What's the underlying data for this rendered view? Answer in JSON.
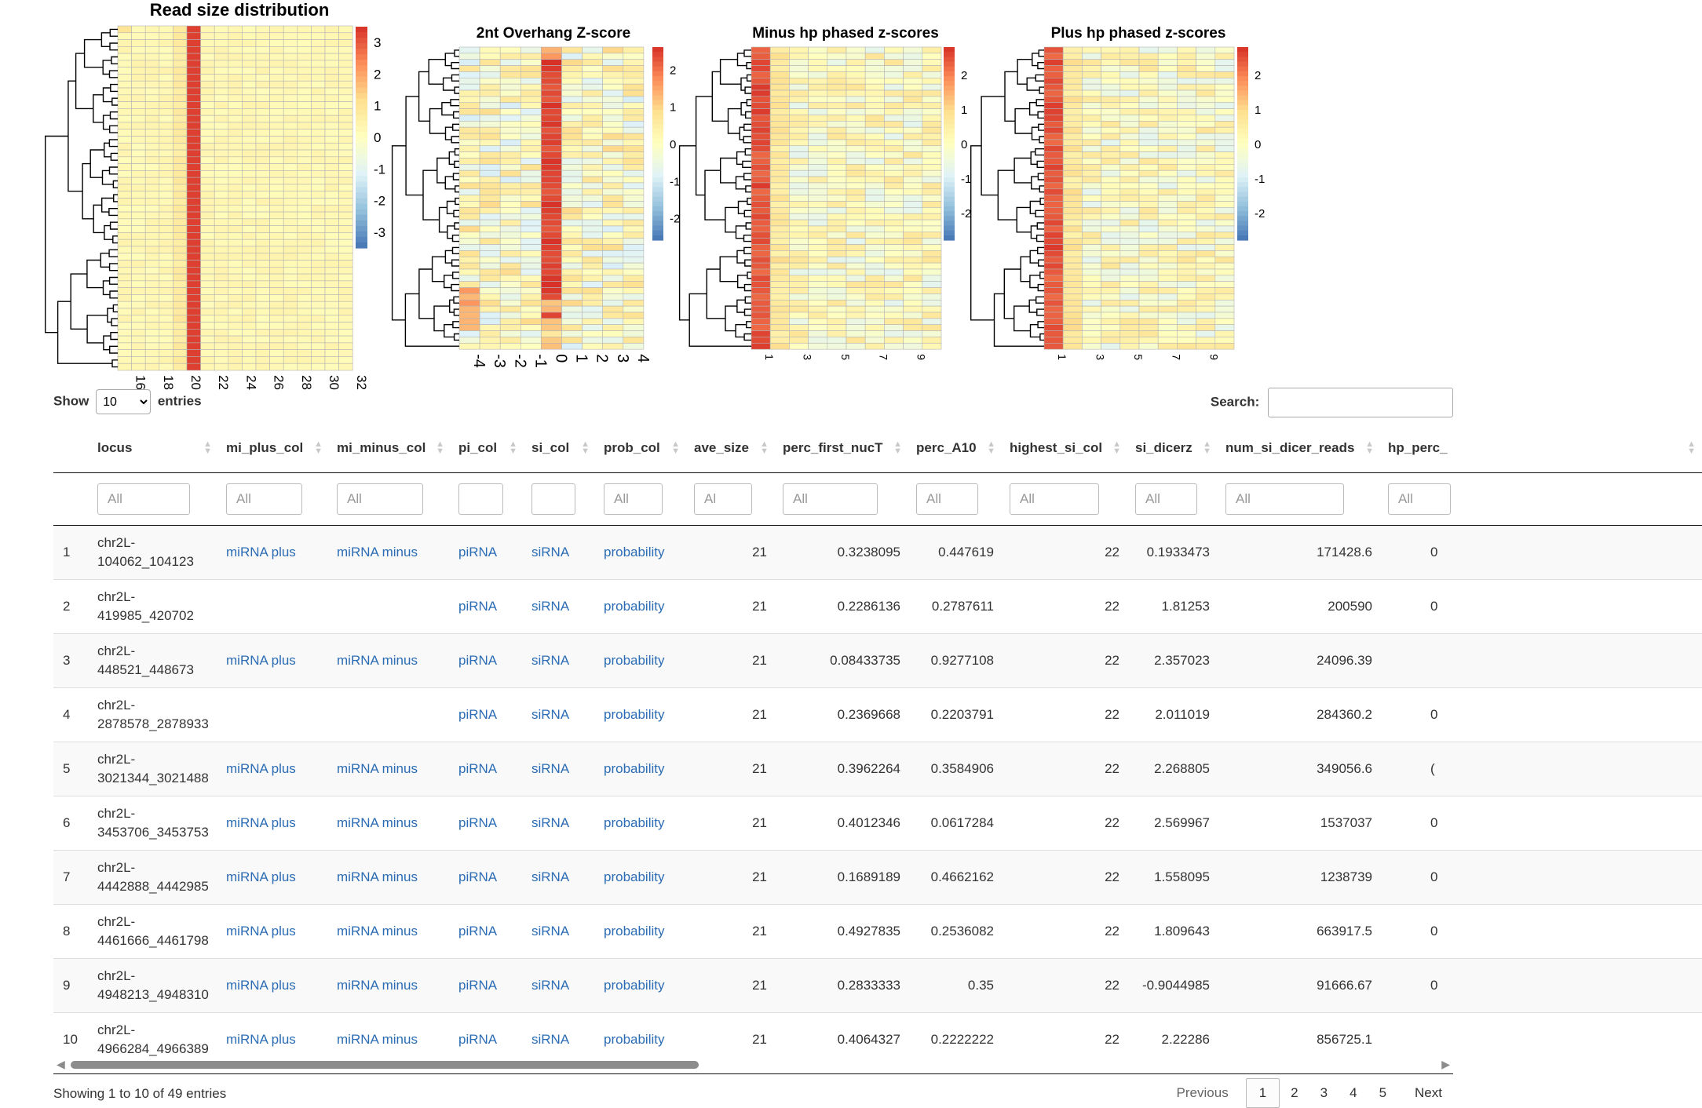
{
  "heatmaps": [
    {
      "title": "Read size distribution",
      "x_ticks": [
        "16",
        "18",
        "20",
        "22",
        "24",
        "26",
        "28",
        "30",
        "32"
      ],
      "legend_ticks": [
        "3",
        "2",
        "1",
        "0",
        "-1",
        "-2",
        "-3"
      ],
      "value_range": [
        -3.5,
        3.5
      ],
      "columns": 17,
      "rows": 50,
      "tick_rotation": "vertical"
    },
    {
      "title": "2nt Overhang Z-score",
      "x_ticks": [
        "-4",
        "-3",
        "-2",
        "-1",
        "0",
        "1",
        "2",
        "3",
        "4"
      ],
      "legend_ticks": [
        "2",
        "1",
        "0",
        "-1",
        "-2"
      ],
      "value_range": [
        -2.6,
        2.6
      ],
      "columns": 9,
      "rows": 49,
      "tick_rotation": "vertical"
    },
    {
      "title": "Minus hp phased z-scores",
      "x_ticks": [
        "1",
        "3",
        "5",
        "7",
        "9"
      ],
      "legend_ticks": [
        "2",
        "1",
        "0",
        "-1",
        "-2"
      ],
      "value_range": [
        -2.8,
        2.8
      ],
      "columns": 10,
      "rows": 49,
      "tick_rotation": "vertical"
    },
    {
      "title": "Plus hp phased z-scores",
      "x_ticks": [
        "1",
        "3",
        "5",
        "7",
        "9"
      ],
      "legend_ticks": [
        "2",
        "1",
        "0",
        "-1",
        "-2"
      ],
      "value_range": [
        -2.8,
        2.8
      ],
      "columns": 10,
      "rows": 49,
      "tick_rotation": "vertical"
    }
  ],
  "color_scale": [
    "#4575b4",
    "#91bfdb",
    "#e0f3f8",
    "#ffffbf",
    "#fee090",
    "#fc8d59",
    "#d73027"
  ],
  "controls": {
    "show_label": "Show",
    "entries_label": "entries",
    "page_length": "10",
    "search_label": "Search:",
    "search_value": ""
  },
  "table": {
    "columns": [
      "",
      "locus",
      "mi_plus_col",
      "mi_minus_col",
      "pi_col",
      "si_col",
      "prob_col",
      "ave_size",
      "perc_first_nucT",
      "perc_A10",
      "highest_si_col",
      "si_dicerz",
      "num_si_dicer_reads",
      "hp_perc_"
    ],
    "filters": [
      "",
      "All",
      "All",
      "All",
      "",
      "",
      "All",
      "Al",
      "All",
      "All",
      "All",
      "All",
      "All",
      "All"
    ],
    "rows": [
      {
        "n": "1",
        "locus_a": "chr2L-",
        "locus_b": "104062_104123",
        "mi_plus": "miRNA plus",
        "mi_minus": "miRNA minus",
        "pi": "piRNA",
        "si": "siRNA",
        "prob": "probability",
        "ave_size": "21",
        "perc_first_nucT": "0.3238095",
        "perc_A10": "0.447619",
        "highest_si": "22",
        "si_dicerz": "0.1933473",
        "num_si_dicer_reads": "171428.6",
        "hp_perc": "0"
      },
      {
        "n": "2",
        "locus_a": "chr2L-",
        "locus_b": "419985_420702",
        "mi_plus": "",
        "mi_minus": "",
        "pi": "piRNA",
        "si": "siRNA",
        "prob": "probability",
        "ave_size": "21",
        "perc_first_nucT": "0.2286136",
        "perc_A10": "0.2787611",
        "highest_si": "22",
        "si_dicerz": "1.81253",
        "num_si_dicer_reads": "200590",
        "hp_perc": "0"
      },
      {
        "n": "3",
        "locus_a": "chr2L-",
        "locus_b": "448521_448673",
        "mi_plus": "miRNA plus",
        "mi_minus": "miRNA minus",
        "pi": "piRNA",
        "si": "siRNA",
        "prob": "probability",
        "ave_size": "21",
        "perc_first_nucT": "0.08433735",
        "perc_A10": "0.9277108",
        "highest_si": "22",
        "si_dicerz": "2.357023",
        "num_si_dicer_reads": "24096.39",
        "hp_perc": ""
      },
      {
        "n": "4",
        "locus_a": "chr2L-",
        "locus_b": "2878578_2878933",
        "mi_plus": "",
        "mi_minus": "",
        "pi": "piRNA",
        "si": "siRNA",
        "prob": "probability",
        "ave_size": "21",
        "perc_first_nucT": "0.2369668",
        "perc_A10": "0.2203791",
        "highest_si": "22",
        "si_dicerz": "2.011019",
        "num_si_dicer_reads": "284360.2",
        "hp_perc": "0"
      },
      {
        "n": "5",
        "locus_a": "chr2L-",
        "locus_b": "3021344_3021488",
        "mi_plus": "miRNA plus",
        "mi_minus": "miRNA minus",
        "pi": "piRNA",
        "si": "siRNA",
        "prob": "probability",
        "ave_size": "21",
        "perc_first_nucT": "0.3962264",
        "perc_A10": "0.3584906",
        "highest_si": "22",
        "si_dicerz": "2.268805",
        "num_si_dicer_reads": "349056.6",
        "hp_perc": "("
      },
      {
        "n": "6",
        "locus_a": "chr2L-",
        "locus_b": "3453706_3453753",
        "mi_plus": "miRNA plus",
        "mi_minus": "miRNA minus",
        "pi": "piRNA",
        "si": "siRNA",
        "prob": "probability",
        "ave_size": "21",
        "perc_first_nucT": "0.4012346",
        "perc_A10": "0.0617284",
        "highest_si": "22",
        "si_dicerz": "2.569967",
        "num_si_dicer_reads": "1537037",
        "hp_perc": "0"
      },
      {
        "n": "7",
        "locus_a": "chr2L-",
        "locus_b": "4442888_4442985",
        "mi_plus": "miRNA plus",
        "mi_minus": "miRNA minus",
        "pi": "piRNA",
        "si": "siRNA",
        "prob": "probability",
        "ave_size": "21",
        "perc_first_nucT": "0.1689189",
        "perc_A10": "0.4662162",
        "highest_si": "22",
        "si_dicerz": "1.558095",
        "num_si_dicer_reads": "1238739",
        "hp_perc": "0"
      },
      {
        "n": "8",
        "locus_a": "chr2L-",
        "locus_b": "4461666_4461798",
        "mi_plus": "miRNA plus",
        "mi_minus": "miRNA minus",
        "pi": "piRNA",
        "si": "siRNA",
        "prob": "probability",
        "ave_size": "21",
        "perc_first_nucT": "0.4927835",
        "perc_A10": "0.2536082",
        "highest_si": "22",
        "si_dicerz": "1.809643",
        "num_si_dicer_reads": "663917.5",
        "hp_perc": "0"
      },
      {
        "n": "9",
        "locus_a": "chr2L-",
        "locus_b": "4948213_4948310",
        "mi_plus": "miRNA plus",
        "mi_minus": "miRNA minus",
        "pi": "piRNA",
        "si": "siRNA",
        "prob": "probability",
        "ave_size": "21",
        "perc_first_nucT": "0.2833333",
        "perc_A10": "0.35",
        "highest_si": "22",
        "si_dicerz": "-0.9044985",
        "num_si_dicer_reads": "91666.67",
        "hp_perc": "0"
      },
      {
        "n": "10",
        "locus_a": "chr2L-",
        "locus_b": "4966284_4966389",
        "mi_plus": "miRNA plus",
        "mi_minus": "miRNA minus",
        "pi": "piRNA",
        "si": "siRNA",
        "prob": "probability",
        "ave_size": "21",
        "perc_first_nucT": "0.4064327",
        "perc_A10": "0.2222222",
        "highest_si": "22",
        "si_dicerz": "2.22286",
        "num_si_dicer_reads": "856725.1",
        "hp_perc": ""
      }
    ]
  },
  "footer": {
    "info": "Showing 1 to 10 of 49 entries",
    "previous": "Previous",
    "pages": [
      "1",
      "2",
      "3",
      "4",
      "5"
    ],
    "current_page": "1",
    "next": "Next"
  },
  "icons": {
    "sort": "sort-both-icon",
    "scroll_left": "scroll-left-arrow-icon",
    "scroll_right": "scroll-right-arrow-icon"
  },
  "scroll": {
    "thumb_fraction": 0.46
  }
}
